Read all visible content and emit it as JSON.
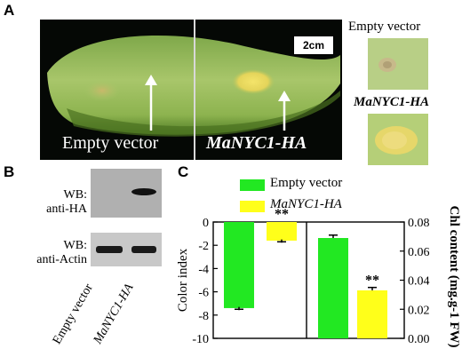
{
  "panels": {
    "a": "A",
    "b": "B",
    "c": "C"
  },
  "panel_a": {
    "left_caption": "Empty vector",
    "right_caption": "MaNYC1-HA",
    "scale_bar": "2cm",
    "thumb_top_label": "Empty vector",
    "thumb_bottom_label": "MaNYC1-HA"
  },
  "panel_b": {
    "blot_top_label_1": "WB:",
    "blot_top_label_2": "anti-HA",
    "blot_bottom_label_1": "WB:",
    "blot_bottom_label_2": "anti-Actin",
    "lanes": [
      "Empty vector",
      "MaNYC1-HA"
    ]
  },
  "colors": {
    "empty_vector": "#22e822",
    "manyc1": "#ffff1a"
  },
  "chart_data": [
    {
      "type": "bar",
      "categories": [
        "Empty vector",
        "MaNYC1-HA"
      ],
      "values": [
        -7.4,
        -1.6
      ],
      "errors": [
        0.1,
        0.1
      ],
      "significance": [
        "",
        "**"
      ],
      "ylabel": "Color index",
      "ylim": [
        -10,
        0
      ],
      "yticks": [
        0,
        -2,
        -4,
        -6,
        -8,
        -10
      ],
      "ytick_labels": [
        "0",
        "-2",
        "-4",
        "-6",
        "-8",
        "-10"
      ]
    },
    {
      "type": "bar",
      "categories": [
        "Empty vector",
        "MaNYC1-HA"
      ],
      "values": [
        0.069,
        0.033
      ],
      "errors": [
        0.002,
        0.002
      ],
      "significance": [
        "",
        "**"
      ],
      "ylabel": "Chl content (mg.g-1 FW)",
      "ylim": [
        0,
        0.08
      ],
      "yticks": [
        0,
        0.02,
        0.04,
        0.06,
        0.08
      ],
      "ytick_labels": [
        "0.00",
        "0.02",
        "0.04",
        "0.06",
        "0.08"
      ]
    }
  ],
  "legend": [
    {
      "label": "Empty vector",
      "italic": false
    },
    {
      "label": "MaNYC1-HA",
      "italic": true
    }
  ]
}
